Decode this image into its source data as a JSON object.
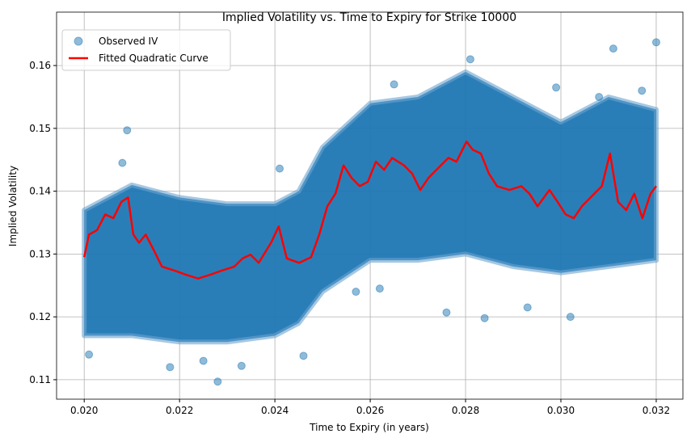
{
  "chart_data": {
    "type": "scatter",
    "title": "Implied Volatility vs. Time to Expiry for Strike 10000",
    "xlabel": "Time to Expiry (in years)",
    "ylabel": "Implied Volatility",
    "xlim": [
      0.01942,
      0.03256
    ],
    "ylim": [
      0.1069,
      0.1685
    ],
    "xticks": [
      "0.020",
      "0.022",
      "0.024",
      "0.026",
      "0.028",
      "0.030",
      "0.032"
    ],
    "yticks": [
      "0.11",
      "0.12",
      "0.13",
      "0.14",
      "0.15",
      "0.16"
    ],
    "grid": true,
    "legend_position": "top-left",
    "series": [
      {
        "name": "Observed IV",
        "kind": "scatter",
        "color": "#1f77b4",
        "alpha": 0.5,
        "extent": {
          "x": [
            0.02,
            0.021,
            0.022,
            0.023,
            0.024,
            0.0245,
            0.025,
            0.026,
            0.027,
            0.028,
            0.029,
            0.03,
            0.031,
            0.032
          ],
          "lower": [
            0.117,
            0.117,
            0.116,
            0.116,
            0.117,
            0.119,
            0.124,
            0.129,
            0.129,
            0.13,
            0.128,
            0.127,
            0.128,
            0.129
          ],
          "upper": [
            0.137,
            0.141,
            0.139,
            0.138,
            0.138,
            0.14,
            0.147,
            0.154,
            0.155,
            0.159,
            0.155,
            0.151,
            0.155,
            0.153
          ]
        },
        "points": [
          [
            0.0209,
            0.1497
          ],
          [
            0.0228,
            0.1097
          ],
          [
            0.0284,
            0.1198
          ],
          [
            0.0302,
            0.12
          ],
          [
            0.032,
            0.1637
          ],
          [
            0.0311,
            0.1627
          ],
          [
            0.0281,
            0.161
          ],
          [
            0.0276,
            0.1207
          ],
          [
            0.0218,
            0.112
          ],
          [
            0.0233,
            0.1122
          ],
          [
            0.0241,
            0.1436
          ],
          [
            0.0293,
            0.1215
          ],
          [
            0.0265,
            0.157
          ],
          [
            0.0208,
            0.1445
          ],
          [
            0.0201,
            0.114
          ],
          [
            0.0246,
            0.1138
          ],
          [
            0.0225,
            0.113
          ],
          [
            0.0299,
            0.1565
          ],
          [
            0.0308,
            0.155
          ],
          [
            0.0317,
            0.156
          ],
          [
            0.0257,
            0.124
          ],
          [
            0.0262,
            0.1245
          ]
        ]
      },
      {
        "name": "Fitted Quadratic Curve",
        "kind": "line",
        "color": "#ff0000",
        "x": [
          0.02,
          0.0201,
          0.02027,
          0.02044,
          0.02061,
          0.02078,
          0.02092,
          0.02103,
          0.02115,
          0.02129,
          0.02146,
          0.02163,
          0.02188,
          0.02214,
          0.02239,
          0.02264,
          0.0229,
          0.02315,
          0.02332,
          0.02349,
          0.02366,
          0.02392,
          0.02408,
          0.02425,
          0.02451,
          0.02476,
          0.02493,
          0.0251,
          0.02527,
          0.02544,
          0.02561,
          0.02578,
          0.02595,
          0.02612,
          0.02629,
          0.02646,
          0.02671,
          0.02688,
          0.02705,
          0.02722,
          0.02739,
          0.02764,
          0.02781,
          0.02802,
          0.02815,
          0.02832,
          0.02849,
          0.02866,
          0.02892,
          0.02917,
          0.02934,
          0.02951,
          0.02976,
          0.02993,
          0.0301,
          0.03027,
          0.03044,
          0.0307,
          0.03086,
          0.03103,
          0.0312,
          0.03137,
          0.03154,
          0.03171,
          0.03188,
          0.032
        ],
        "y": [
          0.1295,
          0.1331,
          0.1338,
          0.1363,
          0.1357,
          0.1383,
          0.139,
          0.1331,
          0.1318,
          0.1331,
          0.1306,
          0.128,
          0.1274,
          0.1267,
          0.1261,
          0.1267,
          0.1274,
          0.128,
          0.1293,
          0.1299,
          0.1286,
          0.1318,
          0.1344,
          0.1293,
          0.1286,
          0.1295,
          0.1331,
          0.1376,
          0.1396,
          0.1441,
          0.1421,
          0.1408,
          0.1415,
          0.1447,
          0.1434,
          0.1453,
          0.1441,
          0.1428,
          0.1402,
          0.1421,
          0.1434,
          0.1453,
          0.1447,
          0.1479,
          0.1466,
          0.146,
          0.1428,
          0.1408,
          0.1402,
          0.1408,
          0.1396,
          0.1376,
          0.1402,
          0.1383,
          0.1363,
          0.1357,
          0.1376,
          0.1396,
          0.1408,
          0.146,
          0.1383,
          0.137,
          0.1396,
          0.1357,
          0.1396,
          0.1408
        ]
      }
    ]
  }
}
